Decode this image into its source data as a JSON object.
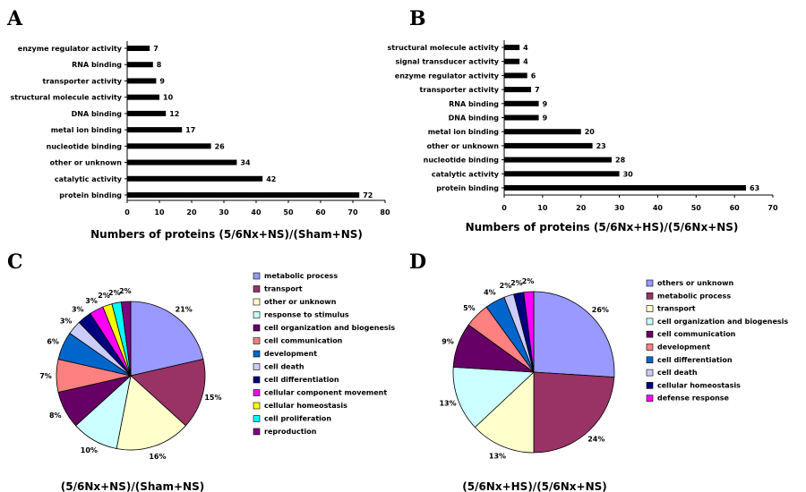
{
  "chart_data": [
    {
      "panel": "A",
      "type": "bar",
      "orientation": "horizontal",
      "categories": [
        "enzyme regulator activity",
        "RNA binding",
        "transporter activity",
        "structural molecule activity",
        "DNA binding",
        "metal ion binding",
        "nucleotide binding",
        "other or unknown",
        "catalytic activity",
        "protein binding"
      ],
      "values": [
        7,
        8,
        9,
        10,
        12,
        17,
        26,
        34,
        42,
        72
      ],
      "xlabel": "Numbers of proteins (5/6Nx+NS)/(Sham+NS)",
      "xlim": [
        0,
        80
      ],
      "xticks": [
        0,
        10,
        20,
        30,
        40,
        50,
        60,
        70,
        80
      ],
      "bar_color": "#000000"
    },
    {
      "panel": "B",
      "type": "bar",
      "orientation": "horizontal",
      "categories": [
        "structural molecule activity",
        "signal transducer activity",
        "enzyme regulator activity",
        "transporter activity",
        "RNA binding",
        "DNA binding",
        "metal ion binding",
        "other or unknown",
        "nucleotide binding",
        "catalytic activity",
        "protein binding"
      ],
      "values": [
        4,
        4,
        6,
        7,
        9,
        9,
        20,
        23,
        28,
        30,
        63
      ],
      "xlabel": "Numbers of proteins (5/6Nx+HS)/(5/6Nx+NS)",
      "xlim": [
        0,
        70
      ],
      "xticks": [
        0,
        10,
        20,
        30,
        40,
        50,
        60,
        70
      ],
      "bar_color": "#000000"
    },
    {
      "panel": "C",
      "type": "pie",
      "caption": "(5/6Nx+NS)/(Sham+NS)",
      "legend_placement": "right",
      "slices": [
        {
          "label": "metabolic process",
          "value": 21,
          "color": "#9999FF"
        },
        {
          "label": "transport",
          "value": 15,
          "color": "#993366"
        },
        {
          "label": "other or unknown",
          "value": 16,
          "color": "#FFFFCC"
        },
        {
          "label": "response to stimulus",
          "value": 10,
          "color": "#CCFFFF"
        },
        {
          "label": "cell organization and biogenesis",
          "value": 8,
          "color": "#660066"
        },
        {
          "label": "cell communication",
          "value": 7,
          "color": "#FF8080"
        },
        {
          "label": "development",
          "value": 6,
          "color": "#0066CC"
        },
        {
          "label": "cell death",
          "value": 3,
          "color": "#CCCCFF"
        },
        {
          "label": "cell differentiation",
          "value": 3,
          "color": "#000080"
        },
        {
          "label": "cellular component movement",
          "value": 3,
          "color": "#FF00FF"
        },
        {
          "label": "cellular homeostasis",
          "value": 2,
          "color": "#FFFF00"
        },
        {
          "label": "cell proliferation",
          "value": 2,
          "color": "#00FFFF"
        },
        {
          "label": "reproduction",
          "value": 2,
          "color": "#800080"
        }
      ]
    },
    {
      "panel": "D",
      "type": "pie",
      "caption": "(5/6Nx+HS)/(5/6Nx+NS)",
      "legend_placement": "right",
      "slices": [
        {
          "label": "others or unknown",
          "value": 26,
          "color": "#9999FF"
        },
        {
          "label": "metabolic process",
          "value": 24,
          "color": "#993366"
        },
        {
          "label": "transport",
          "value": 13,
          "color": "#FFFFCC"
        },
        {
          "label": "cell organization and biogenesis",
          "value": 13,
          "color": "#CCFFFF"
        },
        {
          "label": "cell communication",
          "value": 9,
          "color": "#660066"
        },
        {
          "label": "development",
          "value": 5,
          "color": "#FF8080"
        },
        {
          "label": "cell differentiation",
          "value": 4,
          "color": "#0066CC"
        },
        {
          "label": "cell death",
          "value": 2,
          "color": "#CCCCFF"
        },
        {
          "label": "cellular homeostasis",
          "value": 2,
          "color": "#000080"
        },
        {
          "label": "defense response",
          "value": 2,
          "color": "#FF00FF"
        }
      ]
    }
  ]
}
